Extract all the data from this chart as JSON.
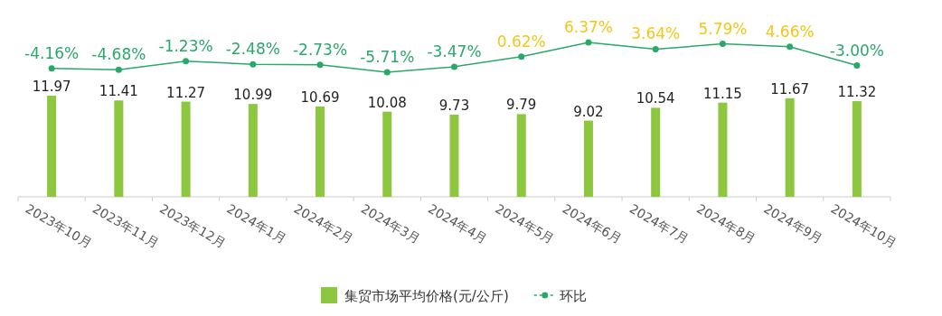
{
  "chart_data": [
    {
      "type": "line",
      "categories": [
        "2023年10月",
        "2023年11月",
        "2023年12月",
        "2024年1月",
        "2024年2月",
        "2024年3月",
        "2024年4月",
        "2024年5月",
        "2024年6月",
        "2024年7月",
        "2024年8月",
        "2024年9月",
        "2024年10月"
      ],
      "tick_labels": false,
      "marker": "circle",
      "legend": "bottom",
      "series": [
        {
          "name": "环比",
          "color": "#2aa86a",
          "values": [
            -4.16,
            -4.68,
            -1.23,
            -2.48,
            -2.73,
            -5.71,
            -3.47,
            0.62,
            6.37,
            3.64,
            5.79,
            4.66,
            -3.0
          ],
          "value_labels": [
            "-4.16%",
            "-4.68%",
            "-1.23%",
            "-2.48%",
            "-2.73%",
            "-5.71%",
            "-3.47%",
            "0.62%",
            "6.37%",
            "3.64%",
            "5.79%",
            "4.66%",
            "-3.00%"
          ]
        }
      ]
    },
    {
      "type": "bar",
      "categories": [
        "2023年10月",
        "2023年11月",
        "2023年12月",
        "2024年1月",
        "2024年2月",
        "2024年3月",
        "2024年4月",
        "2024年5月",
        "2024年6月",
        "2024年7月",
        "2024年8月",
        "2024年9月",
        "2024年10月"
      ],
      "data_labels": true,
      "legend": "bottom",
      "series": [
        {
          "name": "集贸市场平均价格(元/公斤)",
          "color": "#8dc63f",
          "values": [
            11.97,
            11.41,
            11.27,
            10.99,
            10.69,
            10.08,
            9.73,
            9.79,
            9.02,
            10.54,
            11.15,
            11.67,
            11.32
          ]
        }
      ]
    }
  ]
}
